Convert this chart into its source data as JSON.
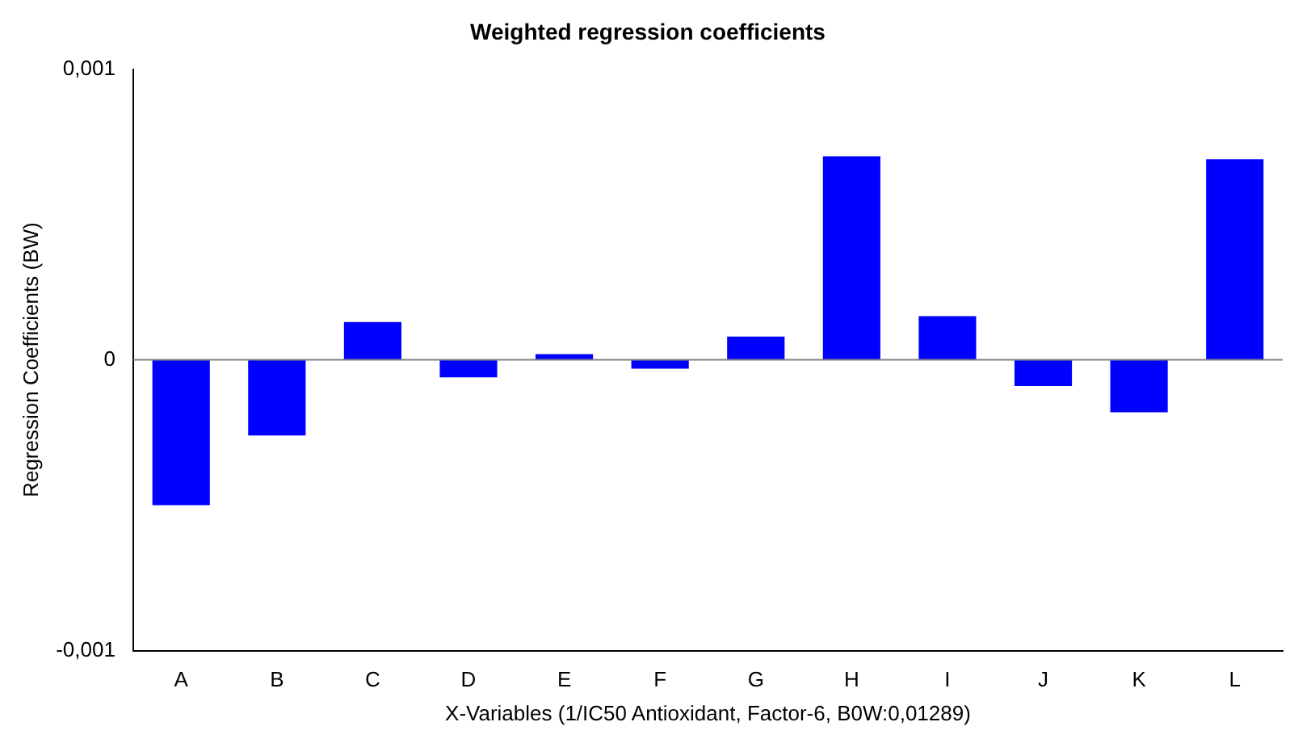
{
  "chart_data": {
    "type": "bar",
    "title": "Weighted regression coefficients",
    "xlabel": "X-Variables (1/IC50 Antioxidant, Factor-6, B0W:0,01289)",
    "ylabel": "Regression Coefficients (BW)",
    "categories": [
      "A",
      "B",
      "C",
      "D",
      "E",
      "F",
      "G",
      "H",
      "I",
      "J",
      "K",
      "L"
    ],
    "values": [
      -0.0005,
      -0.00026,
      0.00013,
      -6e-05,
      2e-05,
      -3e-05,
      8e-05,
      0.0007,
      0.00015,
      -9e-05,
      -0.00018,
      0.00069
    ],
    "color": "#0000ff",
    "ylim": [
      -0.001,
      0.001
    ],
    "yticks": [
      {
        "value": -0.001,
        "label": "-0,001"
      },
      0,
      {
        "value": 0.001,
        "label": "0,001"
      }
    ],
    "grid": false,
    "ref_lines": [
      {
        "axis": "y",
        "value": 0,
        "label": null,
        "color": "#808080"
      }
    ]
  }
}
